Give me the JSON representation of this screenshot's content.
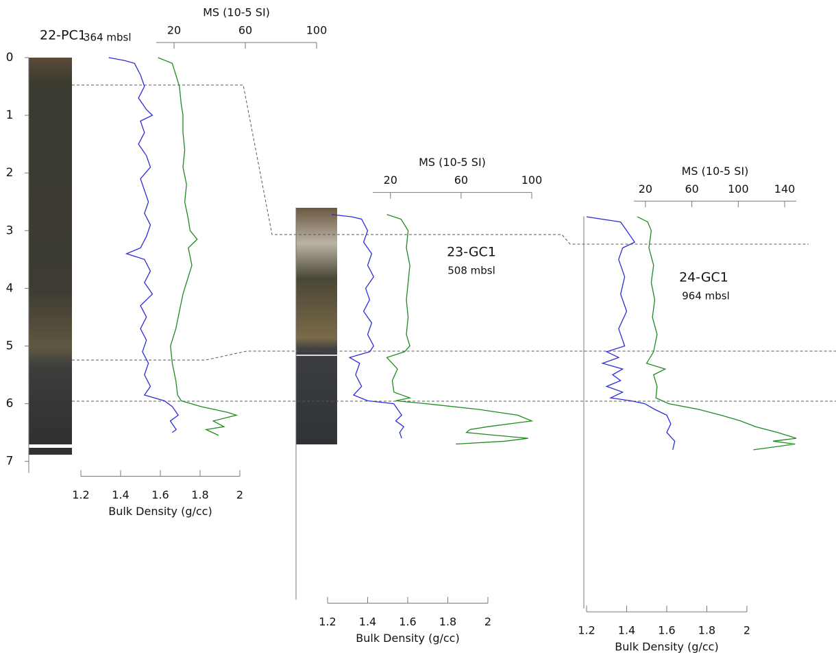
{
  "chart_data": [
    {
      "type": "line",
      "title": "22-PC1",
      "subtitle": "364 mbsl",
      "xlabel": "Bulk Density (g/cc)",
      "x2label": "MS (10-5 SI)",
      "ylim": [
        0,
        7.2
      ],
      "yticks": [
        0,
        1,
        2,
        3,
        4,
        5,
        6,
        7
      ],
      "xlim": [
        1.2,
        2
      ],
      "xticks": [
        1.2,
        1.4,
        1.6,
        1.8,
        2
      ],
      "x2lim": [
        10,
        100
      ],
      "x2ticks": [
        20,
        60,
        100
      ],
      "series": [
        {
          "color": "#2b2bd9",
          "depth": [
            0,
            0.05,
            0.1,
            0.3,
            0.5,
            0.7,
            0.9,
            1.0,
            1.1,
            1.3,
            1.5,
            1.7,
            1.9,
            2.1,
            2.3,
            2.5,
            2.7,
            2.9,
            3.1,
            3.3,
            3.4,
            3.5,
            3.7,
            3.9,
            4.1,
            4.3,
            4.5,
            4.7,
            4.9,
            5.1,
            5.3,
            5.5,
            5.7,
            5.85,
            5.95,
            6.05,
            6.2,
            6.3,
            6.45,
            6.5
          ],
          "values": [
            1.34,
            1.42,
            1.47,
            1.5,
            1.52,
            1.49,
            1.53,
            1.56,
            1.5,
            1.52,
            1.49,
            1.53,
            1.55,
            1.5,
            1.52,
            1.54,
            1.52,
            1.55,
            1.53,
            1.5,
            1.43,
            1.52,
            1.55,
            1.52,
            1.56,
            1.5,
            1.53,
            1.5,
            1.53,
            1.51,
            1.54,
            1.52,
            1.55,
            1.52,
            1.62,
            1.66,
            1.69,
            1.65,
            1.68,
            1.66
          ]
        },
        {
          "color": "#1e8a1e",
          "axis": "x2",
          "depth": [
            0,
            0.05,
            0.1,
            0.3,
            0.5,
            0.8,
            1.0,
            1.3,
            1.6,
            1.9,
            2.2,
            2.5,
            2.8,
            3.0,
            3.15,
            3.3,
            3.6,
            3.9,
            4.1,
            4.4,
            4.7,
            5.0,
            5.3,
            5.6,
            5.85,
            5.95,
            6.05,
            6.15,
            6.2,
            6.3,
            6.4,
            6.45,
            6.55
          ],
          "values": [
            11,
            15,
            19,
            21,
            23,
            24,
            25,
            25,
            26,
            25,
            27,
            26,
            28,
            29,
            33,
            28,
            30,
            27,
            25,
            23,
            21,
            18,
            19,
            21,
            22,
            24,
            35,
            50,
            55,
            42,
            48,
            38,
            45
          ]
        }
      ]
    },
    {
      "type": "line",
      "title": "23-GC1",
      "subtitle": "508 mbsl",
      "xlabel": "Bulk Density (g/cc)",
      "x2label": "MS (10-5 SI)",
      "ylim": [
        2.6,
        9.4
      ],
      "xlim": [
        1.2,
        2
      ],
      "xticks": [
        1.2,
        1.4,
        1.6,
        1.8,
        2
      ],
      "x2lim": [
        10,
        100
      ],
      "x2ticks": [
        20,
        60,
        100
      ],
      "series": [
        {
          "color": "#2b2bd9",
          "depth": [
            2.72,
            2.76,
            2.8,
            3.0,
            3.2,
            3.4,
            3.6,
            3.8,
            4.0,
            4.2,
            4.4,
            4.6,
            4.8,
            5.0,
            5.1,
            5.2,
            5.3,
            5.5,
            5.7,
            5.85,
            5.95,
            6.0,
            6.1,
            6.2,
            6.3,
            6.4,
            6.5,
            6.6
          ],
          "values": [
            1.22,
            1.32,
            1.37,
            1.4,
            1.38,
            1.42,
            1.4,
            1.43,
            1.39,
            1.41,
            1.38,
            1.42,
            1.4,
            1.43,
            1.41,
            1.31,
            1.36,
            1.34,
            1.37,
            1.33,
            1.4,
            1.53,
            1.55,
            1.57,
            1.54,
            1.58,
            1.56,
            1.57
          ]
        },
        {
          "color": "#1e8a1e",
          "axis": "x2",
          "depth": [
            2.72,
            2.8,
            3.0,
            3.3,
            3.6,
            3.9,
            4.2,
            4.5,
            4.8,
            5.0,
            5.1,
            5.2,
            5.4,
            5.6,
            5.8,
            5.9,
            5.95,
            6.0,
            6.1,
            6.2,
            6.3,
            6.4,
            6.45,
            6.5,
            6.55,
            6.6,
            6.65,
            6.7
          ],
          "values": [
            18,
            26,
            30,
            29,
            31,
            30,
            29,
            30,
            29,
            31,
            28,
            18,
            24,
            21,
            22,
            31,
            23,
            40,
            70,
            92,
            100,
            75,
            65,
            63,
            80,
            98,
            85,
            57
          ]
        }
      ]
    },
    {
      "type": "line",
      "title": "24-GC1",
      "subtitle": "964 mbsl",
      "xlabel": "Bulk Density (g/cc)",
      "x2label": "MS (10-5 SI)",
      "ylim": [
        2.75,
        9.55
      ],
      "xlim": [
        1.2,
        2
      ],
      "xticks": [
        1.2,
        1.4,
        1.6,
        1.8,
        2
      ],
      "x2lim": [
        10,
        150
      ],
      "x2ticks": [
        20,
        60,
        100,
        140
      ],
      "series": [
        {
          "color": "#2b2bd9",
          "depth": [
            2.76,
            2.85,
            3.0,
            3.2,
            3.3,
            3.5,
            3.8,
            4.1,
            4.4,
            4.7,
            5.0,
            5.1,
            5.2,
            5.3,
            5.4,
            5.5,
            5.6,
            5.7,
            5.8,
            5.9,
            5.95,
            6.0,
            6.1,
            6.2,
            6.35,
            6.5,
            6.65,
            6.8
          ],
          "values": [
            1.2,
            1.37,
            1.4,
            1.44,
            1.38,
            1.36,
            1.39,
            1.37,
            1.4,
            1.36,
            1.39,
            1.3,
            1.36,
            1.28,
            1.38,
            1.33,
            1.37,
            1.3,
            1.38,
            1.32,
            1.42,
            1.49,
            1.54,
            1.6,
            1.62,
            1.6,
            1.64,
            1.63
          ]
        },
        {
          "color": "#1e8a1e",
          "axis": "x2",
          "depth": [
            2.76,
            2.85,
            3.0,
            3.3,
            3.6,
            3.9,
            4.2,
            4.5,
            4.8,
            5.1,
            5.3,
            5.4,
            5.5,
            5.7,
            5.9,
            6.0,
            6.1,
            6.2,
            6.3,
            6.4,
            6.5,
            6.6,
            6.65,
            6.7,
            6.8
          ],
          "values": [
            13,
            22,
            25,
            23,
            27,
            25,
            28,
            26,
            30,
            27,
            21,
            37,
            27,
            30,
            29,
            40,
            66,
            85,
            102,
            115,
            134,
            150,
            130,
            149,
            113
          ]
        }
      ]
    }
  ]
}
